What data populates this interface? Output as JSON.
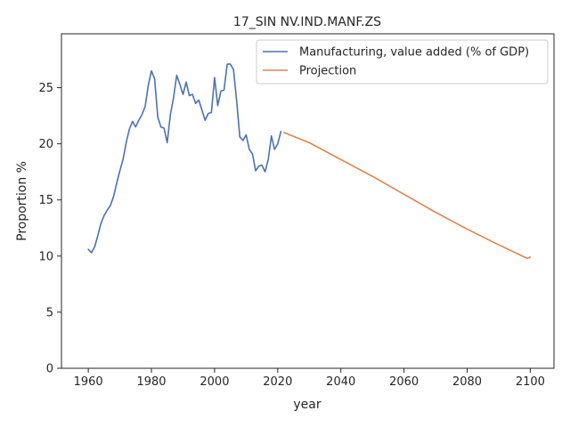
{
  "chart_data": {
    "type": "line",
    "title": "17_SIN NV.IND.MANF.ZS",
    "xlabel": "year",
    "ylabel": "Proportion %",
    "xlim": [
      1951.5,
      2107.5
    ],
    "ylim": [
      0,
      29.8
    ],
    "xticks": [
      1960,
      1980,
      2000,
      2020,
      2040,
      2060,
      2080,
      2100
    ],
    "yticks": [
      0,
      5,
      10,
      15,
      20,
      25
    ],
    "grid": false,
    "legend_position": "top-right",
    "series": [
      {
        "name": "Manufacturing, value added (% of GDP)",
        "color": "#4c72b0",
        "x": [
          1960,
          1961,
          1962,
          1963,
          1964,
          1965,
          1966,
          1967,
          1968,
          1969,
          1970,
          1971,
          1972,
          1973,
          1974,
          1975,
          1976,
          1977,
          1978,
          1979,
          1980,
          1981,
          1982,
          1983,
          1984,
          1985,
          1986,
          1987,
          1988,
          1989,
          1990,
          1991,
          1992,
          1993,
          1994,
          1995,
          1996,
          1997,
          1998,
          1999,
          2000,
          2001,
          2002,
          2003,
          2004,
          2005,
          2006,
          2007,
          2008,
          2009,
          2010,
          2011,
          2012,
          2013,
          2014,
          2015,
          2016,
          2017,
          2018,
          2019,
          2020,
          2021
        ],
        "y": [
          10.6,
          10.3,
          10.8,
          11.8,
          12.9,
          13.6,
          14.1,
          14.5,
          15.3,
          16.5,
          17.6,
          18.6,
          20.1,
          21.3,
          22.0,
          21.5,
          22.1,
          22.6,
          23.3,
          25.2,
          26.5,
          25.8,
          22.4,
          21.5,
          21.4,
          20.1,
          22.6,
          24.1,
          26.1,
          25.3,
          24.4,
          25.5,
          24.3,
          24.4,
          23.6,
          23.9,
          23.0,
          22.1,
          22.7,
          22.8,
          25.9,
          23.4,
          24.7,
          24.8,
          27.1,
          27.1,
          26.6,
          23.8,
          20.6,
          20.3,
          20.8,
          19.5,
          19.1,
          17.6,
          18.0,
          18.1,
          17.5,
          18.6,
          20.7,
          19.5,
          20.0,
          21.1
        ]
      },
      {
        "name": "Projection",
        "color": "#dd8452",
        "x": [
          2022,
          2030,
          2040,
          2050,
          2060,
          2070,
          2080,
          2090,
          2099,
          2100
        ],
        "y": [
          21.0,
          20.1,
          18.6,
          17.1,
          15.5,
          13.9,
          12.4,
          11.0,
          9.8,
          9.9
        ]
      }
    ]
  }
}
